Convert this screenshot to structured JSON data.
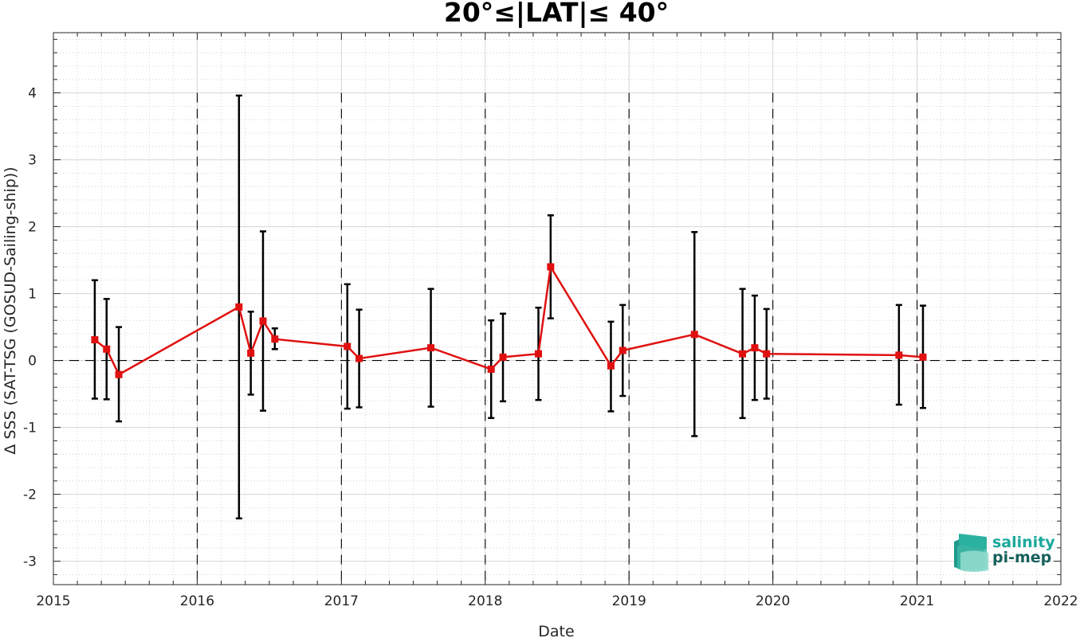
{
  "chart_data": {
    "type": "line",
    "title": "20°≤|LAT|≤ 40°",
    "xlabel": "Date",
    "ylabel": "Δ SSS (SAT-TSG (GOSUD-Sailing-ship))",
    "xlim": [
      "2015-01-01",
      "2022-01-01"
    ],
    "ylim": [
      -3.35,
      4.9
    ],
    "x_ticks": [
      "2015",
      "2016",
      "2017",
      "2018",
      "2019",
      "2020",
      "2021",
      "2022"
    ],
    "y_ticks": [
      "-3",
      "-2",
      "-1",
      "0",
      "1",
      "2",
      "3",
      "4"
    ],
    "grid": true,
    "year_separators": [
      "2016-01-01",
      "2017-01-01",
      "2018-01-01",
      "2019-01-01",
      "2020-01-01",
      "2021-01-01"
    ],
    "zero_line": 0,
    "series_color": "#e01010",
    "errorbar_color": "#000000",
    "points": [
      {
        "x": "2015-04-16",
        "y": 0.31,
        "ylow": -0.57,
        "yhigh": 1.2
      },
      {
        "x": "2015-05-16",
        "y": 0.17,
        "ylow": -0.58,
        "yhigh": 0.92
      },
      {
        "x": "2015-06-16",
        "y": -0.21,
        "ylow": -0.91,
        "yhigh": 0.5
      },
      {
        "x": "2016-04-16",
        "y": 0.8,
        "ylow": -2.36,
        "yhigh": 3.96
      },
      {
        "x": "2016-05-16",
        "y": 0.11,
        "ylow": -0.51,
        "yhigh": 0.73
      },
      {
        "x": "2016-06-16",
        "y": 0.59,
        "ylow": -0.75,
        "yhigh": 1.93
      },
      {
        "x": "2016-07-16",
        "y": 0.32,
        "ylow": 0.17,
        "yhigh": 0.48
      },
      {
        "x": "2017-01-16",
        "y": 0.21,
        "ylow": -0.72,
        "yhigh": 1.14
      },
      {
        "x": "2017-02-15",
        "y": 0.03,
        "ylow": -0.7,
        "yhigh": 0.76
      },
      {
        "x": "2017-08-16",
        "y": 0.19,
        "ylow": -0.69,
        "yhigh": 1.07
      },
      {
        "x": "2018-01-16",
        "y": -0.13,
        "ylow": -0.86,
        "yhigh": 0.6
      },
      {
        "x": "2018-02-15",
        "y": 0.05,
        "ylow": -0.61,
        "yhigh": 0.7
      },
      {
        "x": "2018-05-16",
        "y": 0.1,
        "ylow": -0.59,
        "yhigh": 0.79
      },
      {
        "x": "2018-06-16",
        "y": 1.4,
        "ylow": 0.63,
        "yhigh": 2.17
      },
      {
        "x": "2018-11-16",
        "y": -0.08,
        "ylow": -0.76,
        "yhigh": 0.58
      },
      {
        "x": "2018-12-16",
        "y": 0.15,
        "ylow": -0.53,
        "yhigh": 0.83
      },
      {
        "x": "2019-06-16",
        "y": 0.39,
        "ylow": -1.13,
        "yhigh": 1.92
      },
      {
        "x": "2019-10-16",
        "y": 0.1,
        "ylow": -0.86,
        "yhigh": 1.07
      },
      {
        "x": "2019-11-16",
        "y": 0.19,
        "ylow": -0.59,
        "yhigh": 0.97
      },
      {
        "x": "2019-12-16",
        "y": 0.1,
        "ylow": -0.57,
        "yhigh": 0.77
      },
      {
        "x": "2020-11-16",
        "y": 0.08,
        "ylow": -0.66,
        "yhigh": 0.83
      },
      {
        "x": "2021-01-16",
        "y": 0.05,
        "ylow": -0.71,
        "yhigh": 0.82
      }
    ]
  },
  "logo": {
    "line1": "salinity",
    "line2": "pi-mep",
    "color1": "#1aa89a",
    "color2": "#16605a"
  }
}
